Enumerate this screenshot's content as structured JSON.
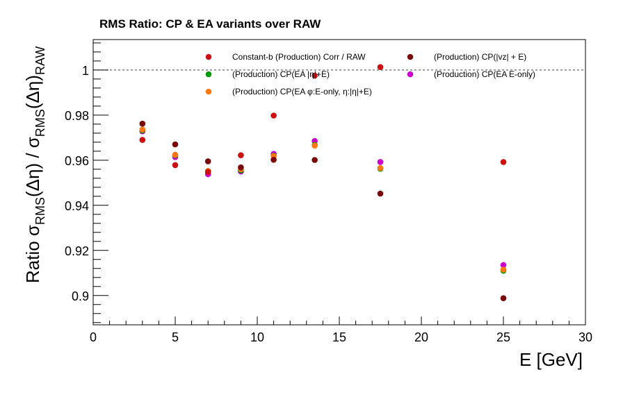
{
  "chart_data": {
    "type": "scatter",
    "title": "RMS Ratio: CP & EA variants over RAW",
    "xlabel": "E  [GeV]",
    "ylabel": "Ratio  σRMS(Δη) / σRMS(Δη)RAW",
    "ylabel_parts": {
      "prefix": "Ratio  σ",
      "sub1": "RMS",
      "mid": "(Δη) / σ",
      "sub2": "RMS",
      "suffix": "(Δη)",
      "sub3": "RAW"
    },
    "xlim": [
      0,
      30
    ],
    "ylim": [
      0.887,
      1.0135
    ],
    "x_ticks": [
      0,
      5,
      10,
      15,
      20,
      25,
      30
    ],
    "y_ticks": [
      0.9,
      0.92,
      0.94,
      0.96,
      0.98,
      1
    ],
    "reference_line": 1,
    "grid": false,
    "legend_position": "top-right",
    "series": [
      {
        "name": "(Production) CP(EA E-only)",
        "color": "#cc00cc",
        "x": [
          3,
          5,
          7,
          9,
          11,
          13.5,
          17.5,
          25
        ],
        "y": [
          0.9728,
          0.9614,
          0.9538,
          0.955,
          0.9628,
          0.9685,
          0.9592,
          0.9135
        ]
      },
      {
        "name": "(Production) CP(EA |η|+E)",
        "color": "#009900",
        "x": [
          3,
          5,
          7,
          9,
          11,
          13.5,
          17.5,
          25
        ],
        "y": [
          0.9732,
          0.9622,
          0.9552,
          0.9555,
          0.962,
          0.9668,
          0.9562,
          0.911
        ]
      },
      {
        "name": "(Production) CP(EA φ:E-only, η:|η|+E)",
        "color": "#ff7711",
        "x": [
          3,
          5,
          7,
          9,
          11,
          13.5,
          17.5,
          25
        ],
        "y": [
          0.9736,
          0.9624,
          0.9552,
          0.956,
          0.9618,
          0.9665,
          0.9565,
          0.9115
        ]
      },
      {
        "name": "Constant-b (Production) Corr / RAW",
        "color": "#cc1111",
        "x": [
          3,
          5,
          7,
          9,
          11,
          13.5,
          17.5,
          25
        ],
        "y": [
          0.969,
          0.9578,
          0.9548,
          0.9622,
          0.9798,
          0.9975,
          1.0013,
          0.9592
        ]
      },
      {
        "name": "(Production) CP(|vz| + E)",
        "color": "#7a0a0a",
        "x": [
          3,
          5,
          7,
          9,
          11,
          13.5,
          17.5,
          25
        ],
        "y": [
          0.9762,
          0.967,
          0.9595,
          0.9568,
          0.9602,
          0.9601,
          0.9452,
          0.8988
        ]
      }
    ],
    "legend": [
      {
        "label": "Constant-b (Production) Corr / RAW",
        "color": "#cc1111"
      },
      {
        "label": "(Production) CP(|vz| + E)",
        "color": "#7a0a0a"
      },
      {
        "label": "(Production) CP(EA |η|+E)",
        "color": "#009900"
      },
      {
        "label": "(Production) CP(EA E-only)",
        "color": "#cc00cc"
      },
      {
        "label": "(Production) CP(EA φ:E-only, η:|η|+E)",
        "color": "#ff7711"
      }
    ]
  }
}
